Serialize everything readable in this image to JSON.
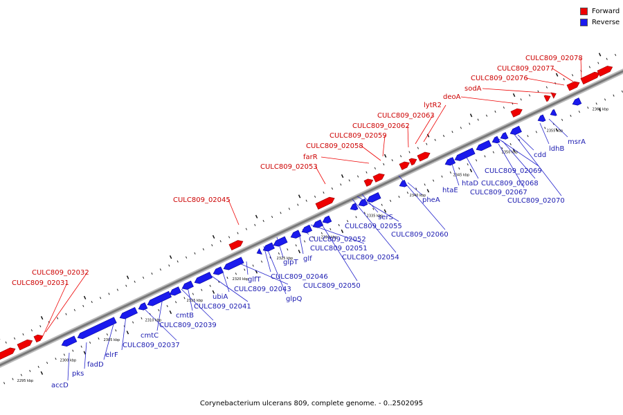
{
  "legend": {
    "forward": {
      "label": "Forward",
      "color": "#ee0000"
    },
    "reverse": {
      "label": "Reverse",
      "color": "#1a1aee"
    }
  },
  "caption": "Corynebacterium ulcerans 809, complete genome. - 0..2502095",
  "backbone_color": "#777777",
  "ticks": [
    "2295 kbp",
    "2300 kbp",
    "2305 kbp",
    "2310 kbp",
    "2315 kbp",
    "2320 kbp",
    "2325 kbp",
    "2330 kbp",
    "2335 kbp",
    "2340 kbp",
    "2345 kbp",
    "2350 kbp",
    "2355 kbp",
    "2360 kbp"
  ],
  "forward_labels": [
    "CULC809_02031",
    "CULC809_02032",
    "CULC809_02045",
    "CULC809_02053",
    "farR",
    "CULC809_02058",
    "CULC809_02059",
    "CULC809_02062",
    "CULC809_02063",
    "lytR2",
    "deoA",
    "sodA",
    "CULC809_02076",
    "CULC809_02077",
    "CULC809_02078"
  ],
  "reverse_labels": [
    "accD",
    "pks",
    "fadD",
    "elrF",
    "CULC809_02037",
    "cmtC",
    "CULC809_02039",
    "cmtB",
    "CULC809_02041",
    "ubiA",
    "CULC809_02043",
    "glfT",
    "glpQ",
    "CULC809_02046",
    "glpT",
    "glf",
    "CULC809_02050",
    "CULC809_02051",
    "CULC809_02052",
    "CULC809_02054",
    "CULC809_02055",
    "serS",
    "CULC809_02060",
    "pheA",
    "htaE",
    "htaD",
    "CULC809_02067",
    "CULC809_02068",
    "CULC809_02069",
    "CULC809_02070",
    "cdd",
    "ldhB",
    "msrA"
  ]
}
